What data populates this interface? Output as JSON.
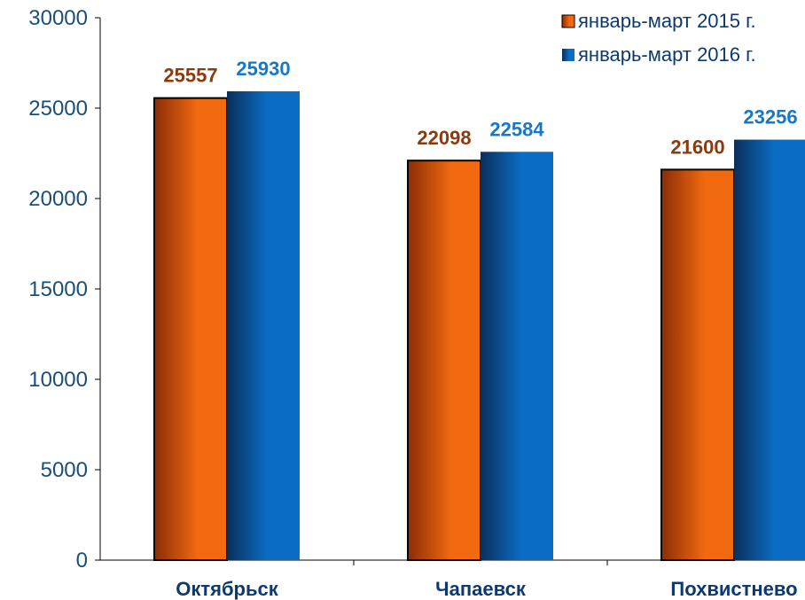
{
  "chart_data": {
    "type": "bar",
    "categories": [
      "Октябрьск",
      "Чапаевск",
      "Похвистнево"
    ],
    "series": [
      {
        "name": "январь-март 2015 г.",
        "values": [
          25557,
          22098,
          21600
        ],
        "color": "#f26a10",
        "label_color": "#8b3a0e"
      },
      {
        "name": "январь-март 2016 г.",
        "values": [
          25930,
          22584,
          23256
        ],
        "color": "#0a6cc2",
        "label_color": "#1878c8"
      }
    ],
    "y_ticks": [
      "0",
      "5000",
      "10000",
      "15000",
      "20000",
      "25000",
      "30000"
    ],
    "ylim": [
      0,
      30000
    ],
    "grid": false,
    "legend_position": "top-right",
    "data_labels": true
  }
}
